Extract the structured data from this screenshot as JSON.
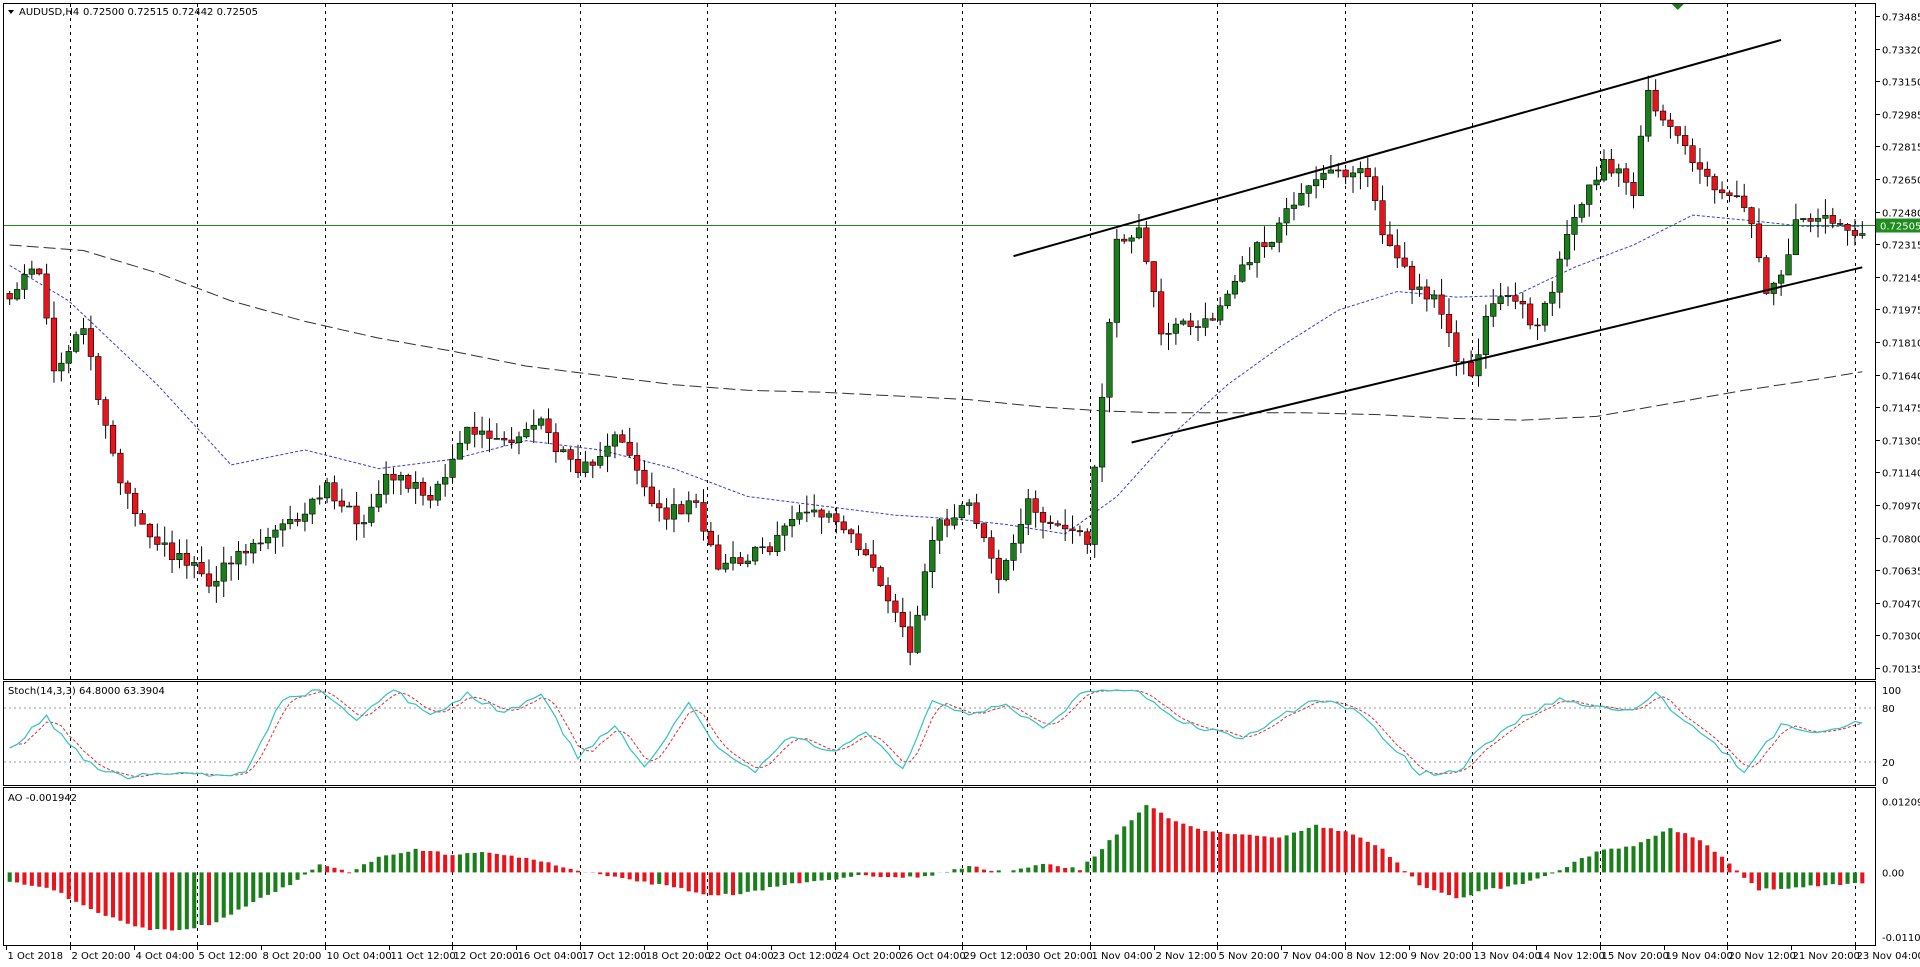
{
  "header": {
    "symbol": "AUDUSD,H4",
    "ohlc": "0.72500 0.72515 0.72442 0.72505"
  },
  "current_price_label": "0.72505",
  "stoch_header": "Stoch(14,3,3) 64.8000 63.3904",
  "ao_header": "AO -0.001942",
  "colors": {
    "bull": "#1a7f1a",
    "bear": "#e8141c",
    "ma_short": "#3a3ad8",
    "ma_long": "#303030",
    "price_line": "#1e8c1e",
    "stoch_main": "#2ec4c4",
    "stoch_signal": "#e03030"
  },
  "chart_data": [
    {
      "type": "candlestick",
      "ylim": [
        0.7013,
        0.7365
      ],
      "y_ticks": [
        "0.73485",
        "0.73320",
        "0.73150",
        "0.72985",
        "0.72815",
        "0.72650",
        "0.72480",
        "0.72315",
        "0.72145",
        "0.71975",
        "0.71810",
        "0.71640",
        "0.71475",
        "0.71305",
        "0.71140",
        "0.70970",
        "0.70800",
        "0.70635",
        "0.70470",
        "0.70300",
        "0.70135"
      ],
      "x_ticks": [
        "1 Oct 2018",
        "2 Oct 20:00",
        "4 Oct 04:00",
        "5 Oct 12:00",
        "8 Oct 20:00",
        "10 Oct 04:00",
        "11 Oct 12:00",
        "12 Oct 20:00",
        "16 Oct 04:00",
        "17 Oct 12:00",
        "18 Oct 20:00",
        "22 Oct 04:00",
        "23 Oct 12:00",
        "24 Oct 20:00",
        "26 Oct 04:00",
        "29 Oct 12:00",
        "30 Oct 20:00",
        "1 Nov 04:00",
        "2 Nov 12:00",
        "5 Nov 20:00",
        "7 Nov 04:00",
        "8 Nov 12:00",
        "9 Nov 20:00",
        "13 Nov 04:00",
        "14 Nov 12:00",
        "15 Nov 20:00",
        "19 Nov 04:00",
        "20 Nov 12:00",
        "21 Nov 20:00",
        "23 Nov 04:00"
      ],
      "close_anchors": [
        [
          0,
          0.7215
        ],
        [
          4,
          0.7228
        ],
        [
          6,
          0.717
        ],
        [
          10,
          0.7195
        ],
        [
          14,
          0.7125
        ],
        [
          18,
          0.709
        ],
        [
          22,
          0.7075
        ],
        [
          27,
          0.706
        ],
        [
          32,
          0.7075
        ],
        [
          38,
          0.709
        ],
        [
          43,
          0.711
        ],
        [
          48,
          0.709
        ],
        [
          51,
          0.712
        ],
        [
          57,
          0.7105
        ],
        [
          62,
          0.714
        ],
        [
          67,
          0.7135
        ],
        [
          72,
          0.7145
        ],
        [
          77,
          0.7115
        ],
        [
          82,
          0.714
        ],
        [
          88,
          0.7095
        ],
        [
          93,
          0.71
        ],
        [
          96,
          0.707
        ],
        [
          102,
          0.7075
        ],
        [
          108,
          0.71
        ],
        [
          113,
          0.709
        ],
        [
          118,
          0.706
        ],
        [
          122,
          0.7025
        ],
        [
          125,
          0.7085
        ],
        [
          130,
          0.7105
        ],
        [
          134,
          0.706
        ],
        [
          138,
          0.71
        ],
        [
          142,
          0.709
        ],
        [
          146,
          0.708
        ],
        [
          150,
          0.724
        ],
        [
          153,
          0.725
        ],
        [
          156,
          0.7195
        ],
        [
          159,
          0.7198
        ],
        [
          163,
          0.72
        ],
        [
          167,
          0.723
        ],
        [
          171,
          0.7245
        ],
        [
          175,
          0.727
        ],
        [
          178,
          0.728
        ],
        [
          181,
          0.7275
        ],
        [
          184,
          0.728
        ],
        [
          186,
          0.7245
        ],
        [
          188,
          0.7235
        ],
        [
          190,
          0.722
        ],
        [
          193,
          0.721
        ],
        [
          196,
          0.718
        ],
        [
          198,
          0.717
        ],
        [
          200,
          0.72
        ],
        [
          203,
          0.7215
        ],
        [
          207,
          0.7195
        ],
        [
          210,
          0.723
        ],
        [
          212,
          0.7255
        ],
        [
          214,
          0.727
        ],
        [
          216,
          0.7285
        ],
        [
          218,
          0.728
        ],
        [
          220,
          0.727
        ],
        [
          222,
          0.732
        ],
        [
          224,
          0.731
        ],
        [
          226,
          0.73
        ],
        [
          228,
          0.7285
        ],
        [
          230,
          0.7275
        ],
        [
          232,
          0.727
        ],
        [
          234,
          0.7265
        ],
        [
          236,
          0.725
        ],
        [
          238,
          0.7215
        ],
        [
          240,
          0.722
        ],
        [
          242,
          0.725
        ],
        [
          244,
          0.7255
        ],
        [
          246,
          0.7252
        ],
        [
          249,
          0.7248
        ],
        [
          251,
          0.725
        ]
      ],
      "bar_count": 252,
      "overlays": [
        {
          "name": "",
          "kind": "moving_average_short",
          "approx": [
            [
              0,
              0.7229
            ],
            [
              8,
              0.721
            ],
            [
              20,
              0.7165
            ],
            [
              30,
              0.7122
            ],
            [
              40,
              0.713
            ],
            [
              50,
              0.712
            ],
            [
              60,
              0.7125
            ],
            [
              70,
              0.7135
            ],
            [
              80,
              0.713
            ],
            [
              90,
              0.712
            ],
            [
              100,
              0.7105
            ],
            [
              110,
              0.71
            ],
            [
              120,
              0.7095
            ],
            [
              128,
              0.7093
            ],
            [
              135,
              0.709
            ],
            [
              143,
              0.7085
            ],
            [
              150,
              0.7105
            ],
            [
              158,
              0.714
            ],
            [
              165,
              0.7165
            ],
            [
              172,
              0.7185
            ],
            [
              180,
              0.7205
            ],
            [
              188,
              0.7215
            ],
            [
              196,
              0.7212
            ],
            [
              204,
              0.7213
            ],
            [
              212,
              0.7228
            ],
            [
              220,
              0.724
            ],
            [
              228,
              0.7256
            ],
            [
              236,
              0.7253
            ],
            [
              243,
              0.725
            ],
            [
              251,
              0.725
            ]
          ]
        },
        {
          "name": "",
          "kind": "moving_average_long",
          "approx": [
            [
              0,
              0.724
            ],
            [
              10,
              0.7237
            ],
            [
              20,
              0.7225
            ],
            [
              30,
              0.721
            ],
            [
              40,
              0.7199
            ],
            [
              50,
              0.719
            ],
            [
              60,
              0.7183
            ],
            [
              70,
              0.7175
            ],
            [
              80,
              0.717
            ],
            [
              90,
              0.7165
            ],
            [
              100,
              0.7162
            ],
            [
              110,
              0.7161
            ],
            [
              120,
              0.7159
            ],
            [
              130,
              0.7157
            ],
            [
              140,
              0.7153
            ],
            [
              148,
              0.7151
            ],
            [
              155,
              0.715
            ],
            [
              165,
              0.715
            ],
            [
              175,
              0.715
            ],
            [
              185,
              0.7149
            ],
            [
              195,
              0.7147
            ],
            [
              205,
              0.7146
            ],
            [
              215,
              0.7148
            ],
            [
              225,
              0.7155
            ],
            [
              235,
              0.7162
            ],
            [
              245,
              0.7168
            ],
            [
              251,
              0.7172
            ]
          ]
        }
      ],
      "trend_lines": [
        {
          "from": [
            136,
            0.7234
          ],
          "to": [
            240,
            0.735
          ]
        },
        {
          "from": [
            152,
            0.7134
          ],
          "to": [
            251,
            0.7228
          ]
        }
      ],
      "horizontal_line": 0.72505,
      "high_marker_bar": 226
    },
    {
      "type": "line",
      "title": "Stoch(14,3,3) 64.8000 63.3904",
      "ylim": [
        0,
        100
      ],
      "y_ticks": [
        "100",
        "80",
        "20",
        "0"
      ],
      "levels": [
        80,
        20
      ],
      "series_anchors": [
        [
          0,
          35
        ],
        [
          5,
          70
        ],
        [
          8,
          40
        ],
        [
          12,
          10
        ],
        [
          16,
          3
        ],
        [
          22,
          8
        ],
        [
          28,
          3
        ],
        [
          32,
          12
        ],
        [
          37,
          90
        ],
        [
          42,
          100
        ],
        [
          47,
          65
        ],
        [
          52,
          100
        ],
        [
          57,
          70
        ],
        [
          62,
          95
        ],
        [
          67,
          75
        ],
        [
          72,
          95
        ],
        [
          77,
          25
        ],
        [
          82,
          60
        ],
        [
          86,
          15
        ],
        [
          92,
          85
        ],
        [
          96,
          35
        ],
        [
          101,
          10
        ],
        [
          106,
          50
        ],
        [
          111,
          30
        ],
        [
          116,
          55
        ],
        [
          121,
          10
        ],
        [
          125,
          90
        ],
        [
          130,
          70
        ],
        [
          135,
          85
        ],
        [
          140,
          55
        ],
        [
          145,
          95
        ],
        [
          148,
          100
        ],
        [
          153,
          100
        ],
        [
          158,
          65
        ],
        [
          163,
          55
        ],
        [
          167,
          45
        ],
        [
          172,
          70
        ],
        [
          177,
          90
        ],
        [
          183,
          75
        ],
        [
          187,
          40
        ],
        [
          191,
          8
        ],
        [
          196,
          8
        ],
        [
          200,
          40
        ],
        [
          205,
          70
        ],
        [
          210,
          90
        ],
        [
          215,
          80
        ],
        [
          220,
          80
        ],
        [
          223,
          95
        ],
        [
          227,
          65
        ],
        [
          231,
          40
        ],
        [
          235,
          10
        ],
        [
          240,
          60
        ],
        [
          245,
          55
        ],
        [
          251,
          65
        ]
      ]
    },
    {
      "type": "bar",
      "title": "AO -0.001942",
      "ylim": [
        -0.0115,
        0.013
      ],
      "y_ticks": [
        "0.012097",
        "0.00",
        "-0.01101"
      ],
      "value_anchors": [
        [
          0,
          -0.0015
        ],
        [
          6,
          -0.003
        ],
        [
          12,
          -0.007
        ],
        [
          18,
          -0.0095
        ],
        [
          23,
          -0.01
        ],
        [
          28,
          -0.0085
        ],
        [
          33,
          -0.005
        ],
        [
          38,
          -0.002
        ],
        [
          42,
          0.0015
        ],
        [
          46,
          0.0
        ],
        [
          50,
          0.0025
        ],
        [
          55,
          0.004
        ],
        [
          60,
          0.003
        ],
        [
          65,
          0.0035
        ],
        [
          70,
          0.0025
        ],
        [
          75,
          0.001
        ],
        [
          80,
          -0.0005
        ],
        [
          85,
          -0.0015
        ],
        [
          90,
          -0.0025
        ],
        [
          95,
          -0.004
        ],
        [
          100,
          -0.0035
        ],
        [
          105,
          -0.002
        ],
        [
          110,
          -0.0015
        ],
        [
          115,
          -0.0005
        ],
        [
          120,
          -0.001
        ],
        [
          125,
          -0.0005
        ],
        [
          130,
          0.001
        ],
        [
          135,
          0.0
        ],
        [
          140,
          0.0015
        ],
        [
          145,
          0.0005
        ],
        [
          150,
          0.0065
        ],
        [
          154,
          0.0115
        ],
        [
          158,
          0.0085
        ],
        [
          162,
          0.007
        ],
        [
          167,
          0.0065
        ],
        [
          172,
          0.006
        ],
        [
          177,
          0.008
        ],
        [
          182,
          0.0065
        ],
        [
          186,
          0.004
        ],
        [
          191,
          -0.002
        ],
        [
          196,
          -0.0045
        ],
        [
          200,
          -0.003
        ],
        [
          205,
          -0.002
        ],
        [
          210,
          0.0005
        ],
        [
          215,
          0.0035
        ],
        [
          220,
          0.0045
        ],
        [
          225,
          0.0075
        ],
        [
          229,
          0.0055
        ],
        [
          233,
          0.0015
        ],
        [
          237,
          -0.003
        ],
        [
          242,
          -0.0025
        ],
        [
          247,
          -0.002
        ],
        [
          251,
          -0.0019
        ]
      ]
    }
  ]
}
